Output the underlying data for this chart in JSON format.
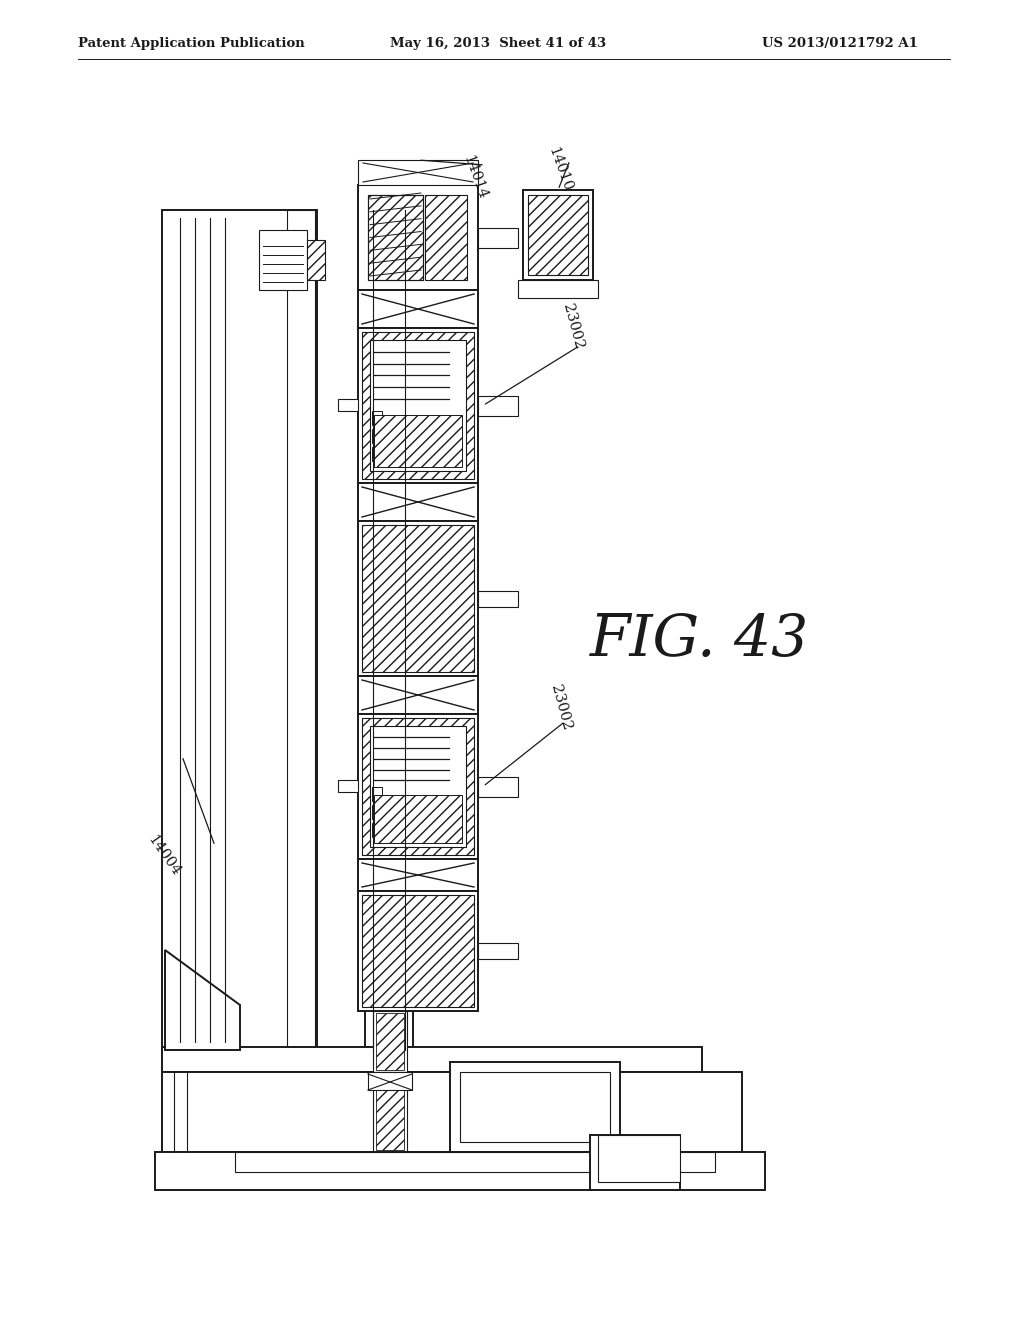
{
  "title_left": "Patent Application Publication",
  "title_mid": "May 16, 2013  Sheet 41 of 43",
  "title_right": "US 2013/0121792 A1",
  "fig_label": "FIG. 43",
  "label_14014": "14014",
  "label_14010": "14010",
  "label_23002_1": "23002",
  "label_23002_2": "23002",
  "label_14004": "14004",
  "bg_color": "#ffffff",
  "line_color": "#1a1a1a"
}
